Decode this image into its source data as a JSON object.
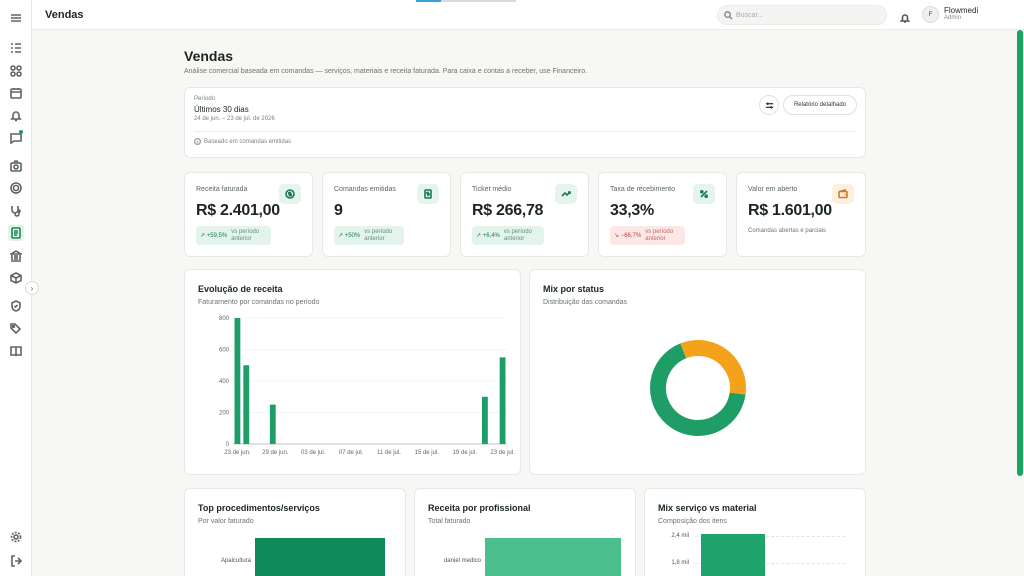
{
  "header": {
    "title": "Vendas",
    "search_placeholder": "Buscar...",
    "user": {
      "initial": "F",
      "name": "Flowmedi",
      "role": "Admin"
    },
    "load_progress": 0.25
  },
  "page": {
    "title": "Vendas",
    "subtitle": "Análise comercial baseada em comandas — serviços, materiais e receita faturada. Para caixa e contas a receber, use Financeiro."
  },
  "filters": {
    "period_label": "Período",
    "period_value": "Últimos 30 dias",
    "period_range": "24 de jun. – 23 de jul. de 2026",
    "report_button": "Relatório detalhado",
    "info": "Baseado em comandas emitidas"
  },
  "kpis": [
    {
      "label": "Receita faturada",
      "value": "R$ 2.401,00",
      "delta": "↗ +59,5%",
      "vs": "vs período anterior",
      "icon": "dollar-icon"
    },
    {
      "label": "Comandas emitidas",
      "value": "9",
      "delta": "↗ +50%",
      "vs": "vs período anterior",
      "icon": "receipt-icon"
    },
    {
      "label": "Ticket médio",
      "value": "R$ 266,78",
      "delta": "↗ +6,4%",
      "vs": "vs período anterior",
      "icon": "trending-up-icon"
    },
    {
      "label": "Taxa de recebimento",
      "value": "33,3%",
      "delta": "↘ −66,7%",
      "vs": "vs período anterior",
      "icon": "percent-icon"
    },
    {
      "label": "Valor em aberto",
      "value": "R$ 1.601,00",
      "note": "Comandas abertas e parciais",
      "icon": "wallet-icon"
    }
  ],
  "revenue_chart": {
    "title": "Evolução de receita",
    "subtitle": "Faturamento por comandas no período"
  },
  "status_chart": {
    "title": "Mix por status",
    "subtitle": "Distribuição das comandas"
  },
  "procedures_chart": {
    "title": "Top procedimentos/serviços",
    "subtitle": "Por valor faturado",
    "category": "Apalcultura"
  },
  "professional_chart": {
    "title": "Receita por profissional",
    "subtitle": "Total faturado",
    "category": "daniel medico"
  },
  "service_material_chart": {
    "title": "Mix serviço vs material",
    "subtitle": "Composição dos itens",
    "ticks": [
      "2,4 mil",
      "1,8 mil"
    ]
  },
  "colors": {
    "accent": "#1f9d66",
    "accent_dark": "#138a5a",
    "orange": "#f4a11c"
  },
  "chart_data": [
    {
      "type": "bar",
      "x_ticks": [
        "23 de jun.",
        "29 de jun.",
        "03 de jul.",
        "07 de jul.",
        "11 de jul.",
        "15 de jul.",
        "19 de jul.",
        "23 de jul."
      ],
      "y_ticks": [
        0,
        200,
        400,
        600,
        800
      ],
      "ylim": [
        0,
        800
      ],
      "x_days": 31,
      "bars": [
        {
          "day": 1,
          "value": 800
        },
        {
          "day": 2,
          "value": 500
        },
        {
          "day": 5,
          "value": 250
        },
        {
          "day": 29,
          "value": 300
        },
        {
          "day": 31,
          "value": 550
        }
      ]
    },
    {
      "type": "pie",
      "donut": true,
      "slices": [
        {
          "value": 6,
          "color": "#1f9d66"
        },
        {
          "value": 3,
          "color": "#f4a11c"
        }
      ]
    }
  ]
}
